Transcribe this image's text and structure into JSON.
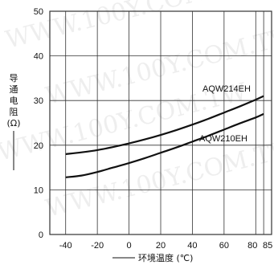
{
  "chart_data": {
    "type": "line",
    "title": "",
    "xlabel": "环境温度 (℃)",
    "ylabel_chars": [
      "导",
      "通",
      "电",
      "阻",
      "(Ω)"
    ],
    "xlim": [
      -50,
      90
    ],
    "ylim": [
      0,
      50
    ],
    "x_ticks": [
      -40,
      -20,
      0,
      20,
      40,
      60,
      80,
      85
    ],
    "x_tick_labels": [
      "-40",
      "-20",
      "0",
      "20",
      "40",
      "60",
      "80",
      "85"
    ],
    "y_ticks": [
      0,
      10,
      20,
      30,
      40,
      50
    ],
    "y_tick_labels": [
      "0",
      "10",
      "20",
      "30",
      "40",
      "50"
    ],
    "grid": true,
    "series": [
      {
        "name": "AQW214EH",
        "x": [
          -40,
          -30,
          -20,
          -10,
          0,
          10,
          20,
          30,
          40,
          50,
          60,
          70,
          80,
          85
        ],
        "y": [
          18,
          18.4,
          18.9,
          19.6,
          20.4,
          21.3,
          22.3,
          23.4,
          24.6,
          25.9,
          27.3,
          28.7,
          30.2,
          31
        ]
      },
      {
        "name": "AQW210EH",
        "x": [
          -40,
          -30,
          -20,
          -10,
          0,
          10,
          20,
          30,
          40,
          50,
          60,
          70,
          80,
          85
        ],
        "y": [
          12.8,
          13.2,
          14.0,
          15.0,
          16.0,
          17.1,
          18.3,
          19.5,
          20.8,
          22.1,
          23.5,
          24.9,
          26.2,
          27
        ]
      }
    ],
    "watermark": "WWW.100Y.COM.TW",
    "colors": {
      "line": "#111111",
      "grid": "#333333",
      "watermark": "#c8c8c8"
    }
  }
}
